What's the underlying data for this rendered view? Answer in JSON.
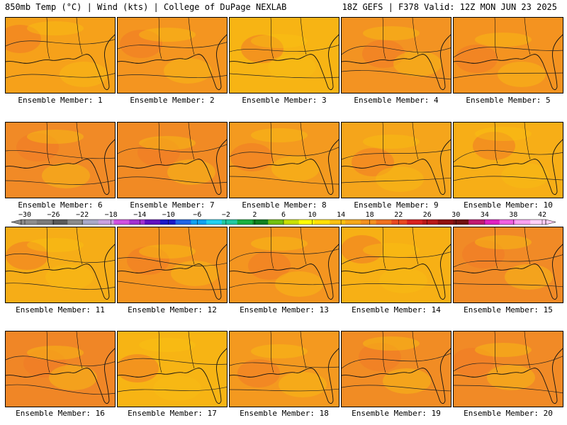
{
  "header": {
    "left_title": "850mb Temp (°C) | Wind (kts) | College of DuPage NEXLAB",
    "right_title": "18Z GEFS | F378 Valid: 12Z MON JUN 23 2025"
  },
  "panels": [
    {
      "label": "Ensemble Member: 1",
      "base": "#f6a11a"
    },
    {
      "label": "Ensemble Member: 2",
      "base": "#f49520"
    },
    {
      "label": "Ensemble Member: 3",
      "base": "#f7b414"
    },
    {
      "label": "Ensemble Member: 4",
      "base": "#f39322"
    },
    {
      "label": "Ensemble Member: 5",
      "base": "#f49320"
    },
    {
      "label": "Ensemble Member: 6",
      "base": "#f18a26"
    },
    {
      "label": "Ensemble Member: 7",
      "base": "#f18a24"
    },
    {
      "label": "Ensemble Member: 8",
      "base": "#f49a1f"
    },
    {
      "label": "Ensemble Member: 9",
      "base": "#f5a51b"
    },
    {
      "label": "Ensemble Member: 10",
      "base": "#f7ae17"
    },
    {
      "label": "Ensemble Member: 11",
      "base": "#f6ad17"
    },
    {
      "label": "Ensemble Member: 12",
      "base": "#f49320"
    },
    {
      "label": "Ensemble Member: 13",
      "base": "#f49520"
    },
    {
      "label": "Ensemble Member: 14",
      "base": "#f7b015"
    },
    {
      "label": "Ensemble Member: 15",
      "base": "#f18a26"
    },
    {
      "label": "Ensemble Member: 16",
      "base": "#f08626"
    },
    {
      "label": "Ensemble Member: 17",
      "base": "#f7b414"
    },
    {
      "label": "Ensemble Member: 18",
      "base": "#f4991f"
    },
    {
      "label": "Ensemble Member: 19",
      "base": "#f18c24"
    },
    {
      "label": "Ensemble Member: 20",
      "base": "#f18a26"
    }
  ],
  "chart_data": {
    "type": "heatmap",
    "title": "850mb Temp (°C) | Wind (kts)",
    "colorbar": {
      "ticks": [
        -30,
        -26,
        -22,
        -18,
        -14,
        -10,
        -6,
        -2,
        2,
        6,
        10,
        14,
        18,
        22,
        26,
        30,
        34,
        38,
        42
      ],
      "tick_labels": [
        "−30",
        "−26",
        "−22",
        "−18",
        "−14",
        "−10",
        "−6",
        "−2",
        "2",
        "6",
        "10",
        "14",
        "18",
        "22",
        "26",
        "30",
        "34",
        "38",
        "42"
      ],
      "colors": [
        "#8c8c8c",
        "#7a7a7a",
        "#5a5a5a",
        "#8a8a8a",
        "#a8a8c8",
        "#c8a0e0",
        "#d050e0",
        "#a030d0",
        "#6010c0",
        "#1818c8",
        "#1e64e6",
        "#10a0f0",
        "#20d0f0",
        "#20c8a0",
        "#18b040",
        "#108020",
        "#70c010",
        "#c8e000",
        "#ffff00",
        "#ffe000",
        "#f8c010",
        "#f5a818",
        "#f39020",
        "#f07020",
        "#e84820",
        "#d82020",
        "#b81818",
        "#901010",
        "#701010",
        "#c01870",
        "#e020c0",
        "#f060e0",
        "#f8a0f0",
        "#ffd0f8"
      ]
    }
  }
}
